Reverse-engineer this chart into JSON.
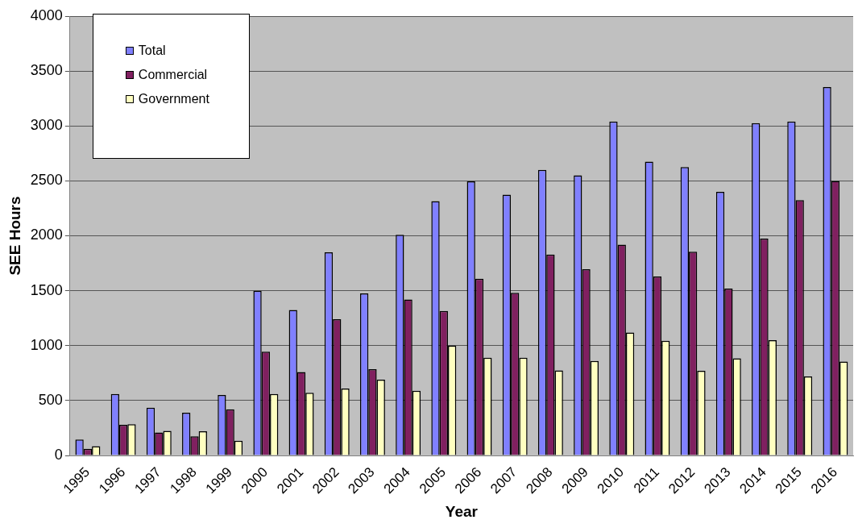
{
  "chart_data": {
    "type": "bar",
    "xlabel": "Year",
    "ylabel": "SEE Hours",
    "categories": [
      "1995",
      "1996",
      "1997",
      "1998",
      "1999",
      "2000",
      "2001",
      "2002",
      "2003",
      "2004",
      "2005",
      "2006",
      "2007",
      "2008",
      "2009",
      "2010",
      "2011",
      "2012",
      "2013",
      "2014",
      "2015",
      "2016"
    ],
    "series": [
      {
        "name": "Total",
        "color": "#8080ff",
        "values": [
          145,
          560,
          435,
          390,
          550,
          1500,
          1325,
          1850,
          1475,
          2010,
          2315,
          2495,
          2375,
          2600,
          2550,
          3040,
          2675,
          2625,
          2400,
          3025,
          3040,
          3355
        ]
      },
      {
        "name": "Commercial",
        "color": "#802060",
        "values": [
          60,
          280,
          210,
          175,
          420,
          945,
          760,
          1240,
          785,
          1420,
          1315,
          1610,
          1480,
          1830,
          1695,
          1920,
          1630,
          1855,
          1520,
          1975,
          2325,
          2500
        ]
      },
      {
        "name": "Government",
        "color": "#ffffc0",
        "values": [
          85,
          285,
          225,
          220,
          135,
          560,
          570,
          610,
          690,
          590,
          1000,
          890,
          890,
          775,
          860,
          1120,
          1045,
          770,
          885,
          1050,
          720,
          855
        ]
      }
    ],
    "ylim": [
      0,
      4000
    ],
    "yticks": [
      0,
      500,
      1000,
      1500,
      2000,
      2500,
      3000,
      3500,
      4000
    ],
    "grid": "y",
    "legend": "top left"
  }
}
